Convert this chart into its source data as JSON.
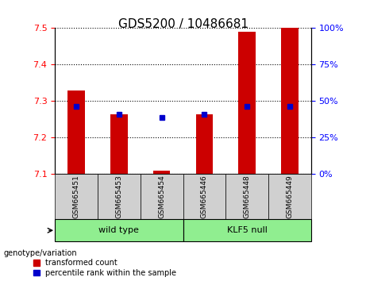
{
  "title": "GDS5200 / 10486681",
  "samples": [
    "GSM665451",
    "GSM665453",
    "GSM665454",
    "GSM665446",
    "GSM665448",
    "GSM665449"
  ],
  "transformed_counts": [
    7.33,
    7.265,
    7.11,
    7.265,
    7.49,
    7.5
  ],
  "percentile_ranks": [
    7.285,
    7.265,
    7.255,
    7.265,
    7.285,
    7.285
  ],
  "bar_base": 7.1,
  "ylim": [
    7.1,
    7.5
  ],
  "yticks": [
    7.1,
    7.2,
    7.3,
    7.4,
    7.5
  ],
  "y2ticks": [
    0,
    25,
    50,
    75,
    100
  ],
  "bar_color": "#cc0000",
  "percentile_color": "#0000cc",
  "group_color": "#90ee90",
  "sample_bg_color": "#d0d0d0",
  "legend_red": "transformed count",
  "legend_blue": "percentile rank within the sample",
  "genotype_label": "genotype/variation",
  "bar_width": 0.4,
  "groups_def": [
    [
      "wild type",
      0,
      2
    ],
    [
      "KLF5 null",
      3,
      5
    ]
  ]
}
